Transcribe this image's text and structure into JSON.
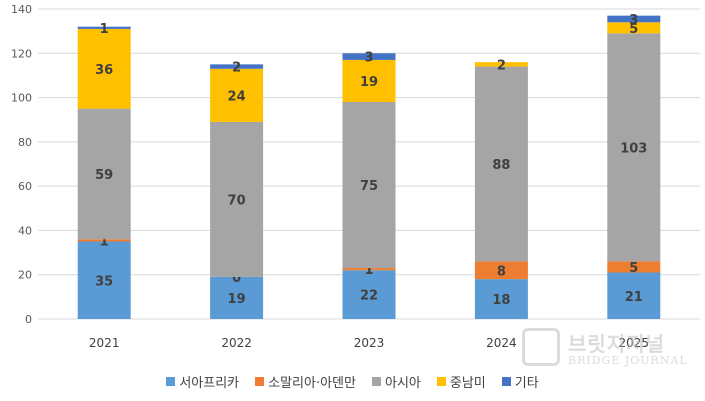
{
  "chart_data": {
    "type": "bar",
    "stacked": true,
    "categories": [
      "2021",
      "2022",
      "2023",
      "2024",
      "2025"
    ],
    "series": [
      {
        "name": "서아프리카",
        "color": "#5B9BD5",
        "values": [
          35,
          19,
          22,
          18,
          21
        ],
        "labels": [
          "35",
          "19",
          "22",
          "18",
          "21"
        ]
      },
      {
        "name": "소말리아·아덴만",
        "color": "#ED7D31",
        "values": [
          1,
          0,
          1,
          8,
          5
        ],
        "labels": [
          "1",
          "0",
          "1",
          "8",
          "5"
        ]
      },
      {
        "name": "아시아",
        "color": "#A5A5A5",
        "values": [
          59,
          70,
          75,
          88,
          103
        ],
        "labels": [
          "59",
          "70",
          "75",
          "88",
          "103"
        ]
      },
      {
        "name": "중남미",
        "color": "#FFC000",
        "values": [
          36,
          24,
          19,
          2,
          5
        ],
        "labels": [
          "36",
          "24",
          "19",
          "2",
          "5"
        ]
      },
      {
        "name": "기타",
        "color": "#4472C4",
        "values": [
          1,
          2,
          3,
          0,
          3
        ],
        "labels": [
          "1",
          "2",
          "3",
          "",
          "3"
        ]
      }
    ],
    "ylim": [
      0,
      140
    ],
    "yticks": [
      "0",
      "20",
      "40",
      "60",
      "80",
      "100",
      "120",
      "140"
    ],
    "grid": true,
    "legend_position": "bottom"
  },
  "watermark": {
    "title": "브릿지저널",
    "subtitle": "BRIDGE JOURNAL"
  }
}
